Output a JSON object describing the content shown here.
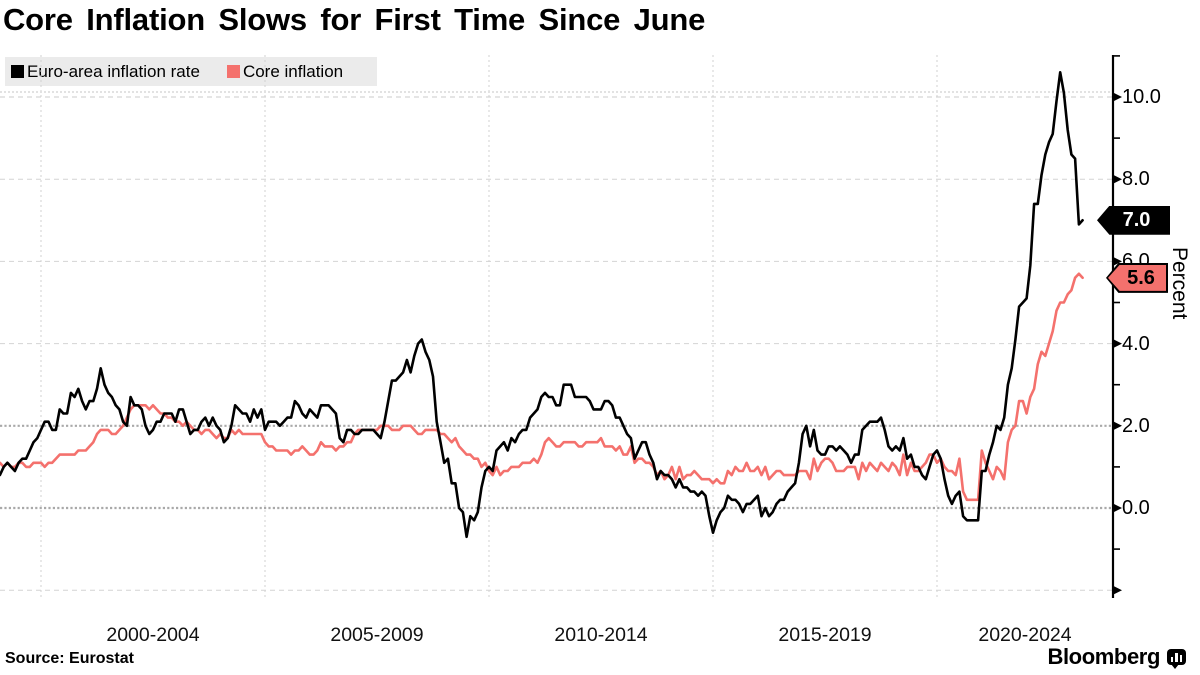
{
  "title": "Core Inflation Slows for First Time Since June",
  "source_label": "Source: Eurostat",
  "brand": "Bloomberg",
  "legend": {
    "items": [
      {
        "label": "Euro-area inflation rate",
        "color": "#000000"
      },
      {
        "label": "Core inflation",
        "color": "#f4716d"
      }
    ]
  },
  "y_axis": {
    "title": "Percent",
    "ticks": [
      {
        "value": 10,
        "label": "10.0"
      },
      {
        "value": 8,
        "label": "8.0"
      },
      {
        "value": 6,
        "label": "6.0"
      },
      {
        "value": 4,
        "label": "4.0"
      },
      {
        "value": 2,
        "label": "2.0"
      },
      {
        "value": 0,
        "label": "0.0"
      }
    ],
    "minor_tick_values": [
      11,
      9,
      7,
      5,
      3,
      1,
      -1
    ],
    "unlabeled_major_tick_values": [
      -2
    ],
    "emphasized_gridline_values": [
      2,
      0
    ],
    "range": [
      -2.2,
      11.0
    ]
  },
  "x_axis": {
    "labels": [
      "2000-2004",
      "2005-2009",
      "2010-2014",
      "2015-2019",
      "2020-2024"
    ],
    "gridline_years": [
      2000,
      2005,
      2010,
      2015,
      2020
    ]
  },
  "end_labels": [
    {
      "series": "Euro-area inflation rate",
      "text": "7.0",
      "value": 7.0,
      "bg": "#000000",
      "fg": "#ffffff"
    },
    {
      "series": "Core inflation",
      "text": "5.6",
      "value": 5.6,
      "bg": "#f4716d",
      "fg": "#000000",
      "border": "#000000"
    }
  ],
  "chart_data": {
    "type": "line",
    "title": "Core Inflation Slows for First Time Since June",
    "ylabel": "Percent",
    "ylim": [
      -2.2,
      11.0
    ],
    "x_start": "1999-01",
    "x_end": "2023-04",
    "frequency": "monthly",
    "grid": true,
    "legend_position": "top-left",
    "series": [
      {
        "name": "Euro-area inflation rate",
        "color": "#000000",
        "values": [
          0.8,
          0.8,
          1.0,
          1.1,
          1.0,
          0.9,
          1.1,
          1.2,
          1.2,
          1.4,
          1.6,
          1.7,
          1.9,
          2.1,
          2.1,
          1.9,
          1.9,
          2.4,
          2.3,
          2.3,
          2.8,
          2.7,
          2.9,
          2.6,
          2.4,
          2.6,
          2.6,
          2.9,
          3.4,
          3.0,
          2.8,
          2.7,
          2.5,
          2.4,
          2.1,
          2.0,
          2.7,
          2.5,
          2.5,
          2.4,
          2.0,
          1.8,
          1.9,
          2.1,
          2.1,
          2.3,
          2.3,
          2.3,
          2.1,
          2.4,
          2.4,
          2.1,
          1.8,
          1.9,
          1.9,
          2.1,
          2.2,
          2.0,
          2.2,
          2.0,
          1.9,
          1.6,
          1.7,
          2.0,
          2.5,
          2.4,
          2.3,
          2.3,
          2.1,
          2.4,
          2.2,
          2.4,
          1.9,
          2.1,
          2.1,
          2.1,
          2.0,
          2.1,
          2.2,
          2.2,
          2.6,
          2.5,
          2.3,
          2.2,
          2.4,
          2.3,
          2.2,
          2.5,
          2.5,
          2.5,
          2.4,
          2.3,
          1.7,
          1.6,
          1.9,
          1.9,
          1.8,
          1.8,
          1.9,
          1.9,
          1.9,
          1.9,
          1.8,
          1.7,
          2.1,
          2.6,
          3.1,
          3.1,
          3.2,
          3.3,
          3.6,
          3.3,
          3.7,
          4.0,
          4.1,
          3.8,
          3.6,
          3.2,
          2.1,
          1.6,
          1.1,
          1.2,
          0.6,
          0.6,
          0.0,
          -0.1,
          -0.7,
          -0.2,
          -0.3,
          -0.1,
          0.5,
          0.9,
          1.0,
          0.9,
          1.4,
          1.5,
          1.6,
          1.4,
          1.7,
          1.6,
          1.8,
          1.9,
          1.9,
          2.2,
          2.3,
          2.4,
          2.7,
          2.8,
          2.7,
          2.7,
          2.5,
          2.5,
          3.0,
          3.0,
          3.0,
          2.7,
          2.7,
          2.7,
          2.7,
          2.6,
          2.4,
          2.4,
          2.4,
          2.6,
          2.6,
          2.5,
          2.2,
          2.2,
          2.0,
          1.8,
          1.7,
          1.2,
          1.4,
          1.6,
          1.6,
          1.3,
          1.1,
          0.7,
          0.9,
          0.8,
          0.8,
          0.7,
          0.5,
          0.7,
          0.5,
          0.5,
          0.4,
          0.4,
          0.3,
          0.4,
          0.3,
          -0.2,
          -0.6,
          -0.3,
          -0.1,
          0.0,
          0.3,
          0.2,
          0.2,
          0.1,
          -0.1,
          0.1,
          0.1,
          0.2,
          0.3,
          -0.2,
          0.0,
          -0.2,
          -0.1,
          0.1,
          0.2,
          0.2,
          0.4,
          0.5,
          0.6,
          1.1,
          1.8,
          2.0,
          1.5,
          1.9,
          1.4,
          1.3,
          1.3,
          1.5,
          1.5,
          1.4,
          1.5,
          1.4,
          1.3,
          1.1,
          1.3,
          1.3,
          1.9,
          2.0,
          2.1,
          2.1,
          2.1,
          2.2,
          1.9,
          1.5,
          1.4,
          1.5,
          1.4,
          1.7,
          1.2,
          1.3,
          1.0,
          1.0,
          0.8,
          0.7,
          1.0,
          1.3,
          1.4,
          1.2,
          0.7,
          0.3,
          0.1,
          0.3,
          0.4,
          -0.2,
          -0.3,
          -0.3,
          -0.3,
          -0.3,
          0.9,
          0.9,
          1.3,
          1.6,
          2.0,
          1.9,
          2.2,
          3.0,
          3.4,
          4.1,
          4.9,
          5.0,
          5.1,
          5.9,
          7.4,
          7.4,
          8.1,
          8.6,
          8.9,
          9.1,
          9.9,
          10.6,
          10.1,
          9.2,
          8.6,
          8.5,
          6.9,
          7.0
        ]
      },
      {
        "name": "Core inflation",
        "color": "#f4716d",
        "values": [
          1.1,
          1.1,
          1.0,
          1.1,
          1.0,
          1.0,
          1.1,
          1.1,
          1.0,
          1.0,
          1.1,
          1.1,
          1.1,
          1.0,
          1.1,
          1.1,
          1.2,
          1.3,
          1.3,
          1.3,
          1.3,
          1.3,
          1.4,
          1.4,
          1.4,
          1.5,
          1.6,
          1.8,
          1.9,
          1.9,
          1.9,
          1.8,
          1.8,
          1.9,
          2.0,
          2.2,
          2.4,
          2.5,
          2.5,
          2.5,
          2.5,
          2.4,
          2.5,
          2.4,
          2.3,
          2.3,
          2.2,
          2.2,
          2.1,
          2.1,
          2.0,
          2.1,
          2.0,
          1.9,
          1.9,
          1.8,
          1.9,
          1.9,
          1.8,
          1.7,
          1.8,
          1.7,
          1.7,
          1.9,
          1.8,
          1.9,
          1.8,
          1.8,
          1.8,
          1.8,
          1.8,
          1.8,
          1.6,
          1.5,
          1.5,
          1.4,
          1.4,
          1.4,
          1.4,
          1.3,
          1.4,
          1.4,
          1.5,
          1.4,
          1.3,
          1.3,
          1.4,
          1.6,
          1.5,
          1.5,
          1.5,
          1.4,
          1.5,
          1.5,
          1.6,
          1.6,
          1.8,
          1.9,
          1.9,
          1.9,
          1.9,
          1.9,
          1.9,
          2.0,
          2.0,
          2.0,
          1.9,
          1.9,
          1.9,
          2.0,
          2.0,
          2.0,
          1.9,
          1.8,
          1.8,
          1.9,
          1.9,
          1.9,
          1.9,
          1.8,
          1.8,
          1.7,
          1.6,
          1.7,
          1.5,
          1.4,
          1.3,
          1.3,
          1.2,
          1.2,
          1.0,
          1.1,
          0.9,
          0.8,
          1.0,
          0.8,
          0.9,
          0.9,
          1.0,
          1.0,
          1.0,
          1.1,
          1.1,
          1.1,
          1.2,
          1.1,
          1.3,
          1.6,
          1.7,
          1.6,
          1.5,
          1.5,
          1.6,
          1.6,
          1.6,
          1.6,
          1.5,
          1.5,
          1.6,
          1.6,
          1.6,
          1.6,
          1.7,
          1.5,
          1.5,
          1.5,
          1.4,
          1.5,
          1.3,
          1.3,
          1.5,
          1.1,
          1.2,
          1.2,
          1.1,
          1.1,
          1.0,
          0.8,
          0.9,
          0.7,
          0.8,
          1.0,
          0.7,
          1.0,
          0.7,
          0.8,
          0.8,
          0.9,
          0.8,
          0.7,
          0.7,
          0.7,
          0.6,
          0.7,
          0.6,
          0.6,
          0.9,
          0.8,
          1.0,
          0.9,
          0.9,
          1.1,
          0.9,
          0.9,
          1.0,
          0.8,
          1.0,
          0.7,
          0.8,
          0.9,
          0.9,
          0.8,
          0.8,
          0.8,
          0.8,
          0.9,
          0.9,
          0.9,
          0.7,
          1.2,
          0.9,
          1.1,
          1.2,
          1.2,
          1.1,
          0.9,
          0.9,
          0.9,
          1.0,
          1.0,
          1.0,
          0.7,
          1.1,
          0.9,
          1.1,
          1.0,
          0.9,
          1.1,
          1.0,
          0.9,
          1.1,
          1.0,
          0.8,
          1.3,
          0.8,
          1.1,
          0.9,
          0.9,
          1.0,
          1.1,
          1.3,
          1.3,
          1.1,
          1.2,
          1.0,
          0.9,
          0.9,
          0.8,
          1.2,
          0.4,
          0.2,
          0.2,
          0.2,
          0.2,
          1.4,
          1.1,
          0.9,
          0.7,
          1.0,
          0.9,
          0.7,
          1.6,
          1.9,
          2.0,
          2.6,
          2.6,
          2.3,
          2.7,
          2.9,
          3.5,
          3.8,
          3.7,
          4.0,
          4.3,
          4.8,
          5.0,
          5.0,
          5.2,
          5.3,
          5.6,
          5.7,
          5.6
        ]
      }
    ]
  }
}
